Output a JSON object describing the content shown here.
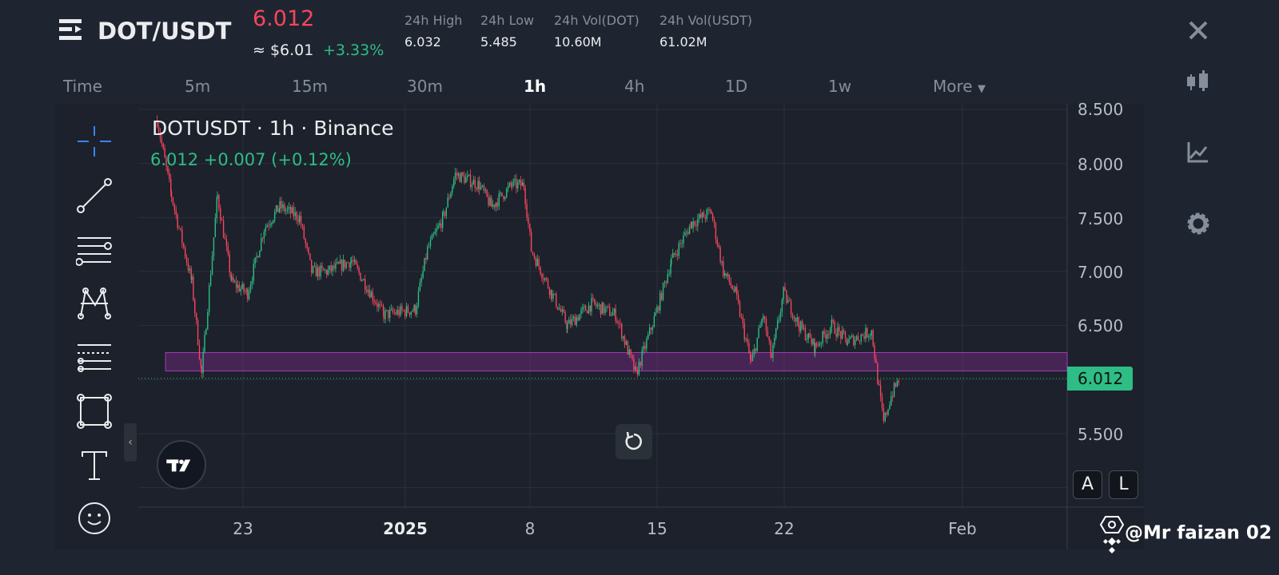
{
  "header": {
    "pair": "DOT/USDT",
    "price": "6.012",
    "price_usd": "≈ $6.01",
    "change_pct": "+3.33%",
    "stats": [
      {
        "label": "24h High",
        "value": "6.032"
      },
      {
        "label": "24h Low",
        "value": "5.485"
      },
      {
        "label": "24h Vol(DOT)",
        "value": "10.60M"
      },
      {
        "label": "24h Vol(USDT)",
        "value": "61.02M"
      }
    ]
  },
  "timeframes": {
    "items": [
      "Time",
      "5m",
      "15m",
      "30m",
      "1h",
      "4h",
      "1D",
      "1w",
      "More"
    ],
    "active": "1h"
  },
  "legend": {
    "title": "DOTUSDT · 1h · Binance",
    "values": "6.012  +0.007 (+0.12%)"
  },
  "buttons": {
    "auto": "A",
    "log": "L",
    "collapse": "‹"
  },
  "watermark": "@Mr faizan 02",
  "colors": {
    "up": "#2ebd85",
    "down": "#f6465d",
    "zone": "#7b2a8a",
    "background": "#1f2530"
  },
  "chart_data": {
    "type": "candlestick",
    "interval": "1h",
    "y_ticks": [
      "8.500",
      "8.000",
      "7.500",
      "7.000",
      "6.500",
      "6.012",
      "5.500"
    ],
    "x_ticks": [
      "23",
      "2025",
      "8",
      "15",
      "22",
      "Feb"
    ],
    "ylim": [
      4.9,
      8.6
    ],
    "last_price": 6.012,
    "support_zone": [
      6.08,
      6.25
    ],
    "grid": true,
    "close_path": [
      [
        "2024-12-18T06:00",
        8.4
      ],
      [
        "2024-12-19T01:00",
        7.7
      ],
      [
        "2024-12-20T04:00",
        6.9
      ],
      [
        "2024-12-20T17:00",
        6.05
      ],
      [
        "2024-12-21T14:00",
        7.7
      ],
      [
        "2024-12-22T09:00",
        6.9
      ],
      [
        "2024-12-23T06:00",
        6.8
      ],
      [
        "2024-12-24T04:00",
        7.4
      ],
      [
        "2024-12-25T01:00",
        7.6
      ],
      [
        "2024-12-26T03:00",
        7.5
      ],
      [
        "2024-12-26T19:00",
        7.0
      ],
      [
        "2024-12-27T17:00",
        7.0
      ],
      [
        "2024-12-29T00:00",
        7.1
      ],
      [
        "2024-12-30T19:00",
        6.6
      ],
      [
        "2025-01-01T13:00",
        6.65
      ],
      [
        "2025-01-02T05:00",
        7.2
      ],
      [
        "2025-01-03T02:00",
        7.5
      ],
      [
        "2025-01-03T18:00",
        7.9
      ],
      [
        "2025-01-05T02:00",
        7.8
      ],
      [
        "2025-01-05T18:00",
        7.6
      ],
      [
        "2025-01-06T21:00",
        7.8
      ],
      [
        "2025-01-07T13:00",
        7.8
      ],
      [
        "2025-01-07T23:00",
        7.2
      ],
      [
        "2025-01-09T02:00",
        6.8
      ],
      [
        "2025-01-09T23:00",
        6.5
      ],
      [
        "2025-01-11T07:00",
        6.7
      ],
      [
        "2025-01-12T15:00",
        6.6
      ],
      [
        "2025-01-13T18:00",
        6.05
      ],
      [
        "2025-01-14T20:00",
        6.6
      ],
      [
        "2025-01-15T17:00",
        7.1
      ],
      [
        "2025-01-16T20:00",
        7.45
      ],
      [
        "2025-01-17T22:00",
        7.55
      ],
      [
        "2025-01-18T14:00",
        7.0
      ],
      [
        "2025-01-19T06:00",
        6.8
      ],
      [
        "2025-01-20T03:00",
        6.15
      ],
      [
        "2025-01-20T19:00",
        6.6
      ],
      [
        "2025-01-21T06:00",
        6.2
      ],
      [
        "2025-01-21T22:00",
        6.8
      ],
      [
        "2025-01-22T19:00",
        6.5
      ],
      [
        "2025-01-23T16:00",
        6.3
      ],
      [
        "2025-01-24T14:00",
        6.5
      ],
      [
        "2025-01-25T11:00",
        6.35
      ],
      [
        "2025-01-26T19:00",
        6.45
      ],
      [
        "2025-01-27T05:00",
        5.9
      ],
      [
        "2025-01-27T11:00",
        5.6
      ],
      [
        "2025-01-27T21:00",
        5.85
      ],
      [
        "2025-01-28T08:00",
        6.012
      ]
    ]
  }
}
